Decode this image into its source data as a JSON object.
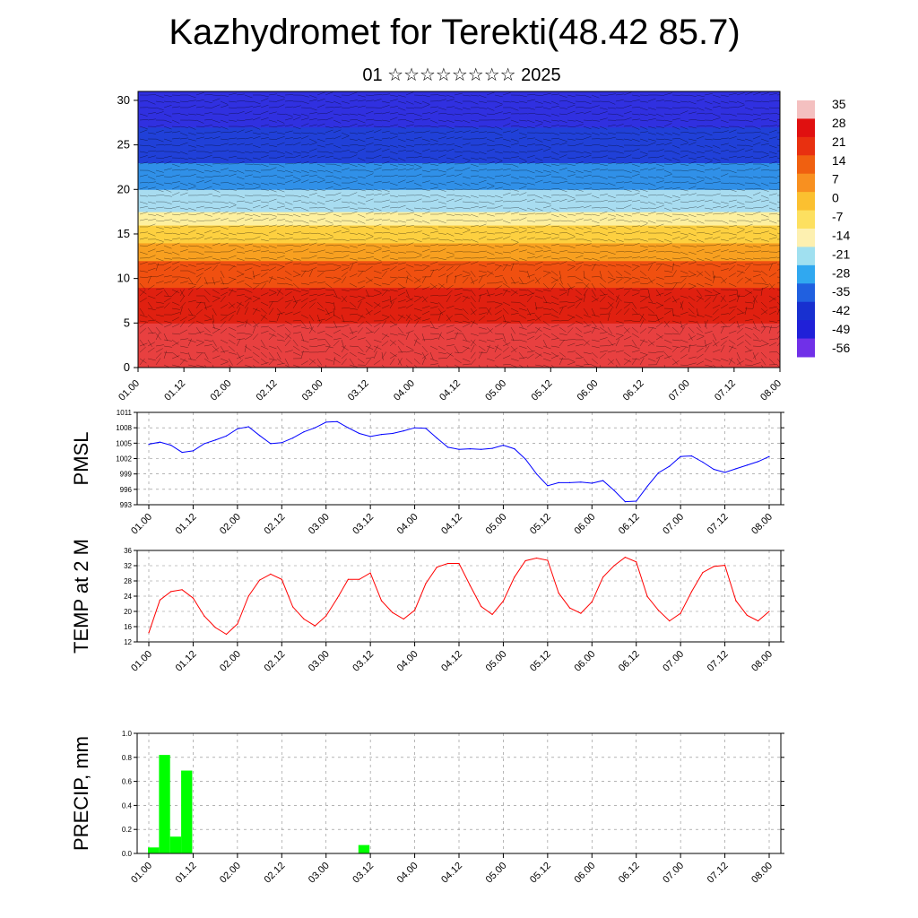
{
  "title": "Kazhydromet for Terekti(48.42 85.7)",
  "subtitle": "01 ☆☆☆☆☆☆☆☆ 2025",
  "time_ticks": [
    "01.00",
    "01.12",
    "02.00",
    "02.12",
    "03.00",
    "03.12",
    "04.00",
    "04.12",
    "05.00",
    "05.12",
    "06.00",
    "06.12",
    "07.00",
    "07.12",
    "08.00"
  ],
  "chart_data": [
    {
      "type": "heatmap",
      "name": "vertical-cross-section",
      "description": "temperature field with wind barbs over 0-30 levels",
      "y_ticks": [
        0,
        5,
        10,
        15,
        20,
        25,
        30
      ],
      "ylim": [
        0,
        31
      ],
      "colorbar": {
        "labels": [
          "35",
          "28",
          "21",
          "14",
          "7",
          "0",
          "-7",
          "-14",
          "-21",
          "-28",
          "-35",
          "-42",
          "-49",
          "-56"
        ],
        "colors": [
          "#f4c0c0",
          "#e01010",
          "#e83010",
          "#f06010",
          "#f89020",
          "#fbc030",
          "#fde060",
          "#fdf0b0",
          "#a0e0f0",
          "#30a8f0",
          "#2060e0",
          "#1830d0",
          "#2020d8",
          "#7030e8"
        ]
      },
      "bands": [
        {
          "level": 0,
          "color": "#e84040"
        },
        {
          "level": 5,
          "color": "#e02010"
        },
        {
          "level": 9,
          "color": "#f05010"
        },
        {
          "level": 12,
          "color": "#f8a020"
        },
        {
          "level": 14,
          "color": "#fdd040"
        },
        {
          "level": 16,
          "color": "#fdf0a0"
        },
        {
          "level": 17.5,
          "color": "#a8dcf0"
        },
        {
          "level": 20,
          "color": "#3090e8"
        },
        {
          "level": 23,
          "color": "#2040d8"
        },
        {
          "level": 27,
          "color": "#3030e0"
        },
        {
          "level": 31,
          "color": "#7040e8"
        }
      ]
    },
    {
      "type": "line",
      "name": "pmsl",
      "ylabel": "PMSL",
      "ylim": [
        993,
        1011
      ],
      "y_ticks": [
        993,
        996,
        999,
        1002,
        1005,
        1008,
        1011
      ],
      "color": "#0000ff",
      "x": [
        0,
        3,
        6,
        9,
        12,
        15,
        18,
        21,
        24,
        27,
        30,
        33,
        36,
        39,
        42,
        45,
        48,
        51,
        54,
        57,
        60,
        63,
        66,
        69,
        72,
        75,
        78,
        81,
        84,
        87,
        90,
        93,
        96,
        99,
        102,
        105,
        108,
        111,
        114,
        117,
        120,
        123,
        126,
        129,
        132,
        135,
        138,
        141,
        144,
        147,
        150,
        153,
        156,
        159,
        162,
        165,
        168
      ],
      "values": [
        1004.8,
        1005.2,
        1004.6,
        1003.2,
        1003.5,
        1004.9,
        1005.6,
        1006.4,
        1007.8,
        1008.2,
        1006.5,
        1004.9,
        1005.1,
        1006.0,
        1007.2,
        1008.0,
        1009.1,
        1009.2,
        1008.0,
        1006.9,
        1006.3,
        1006.7,
        1006.9,
        1007.4,
        1008.0,
        1007.9,
        1006.0,
        1004.2,
        1003.8,
        1003.9,
        1003.8,
        1004.0,
        1004.6,
        1003.9,
        1001.9,
        999.0,
        996.7,
        997.3,
        997.3,
        997.4,
        997.2,
        997.7,
        995.8,
        993.6,
        993.7,
        996.6,
        999.2,
        1000.5,
        1002.4,
        1002.5,
        1001.3,
        999.9,
        999.3,
        1000.0,
        1000.7,
        1001.4,
        1002.4
      ]
    },
    {
      "type": "line",
      "name": "temp-2m",
      "ylabel": "TEMP at 2 M",
      "ylim": [
        12,
        36
      ],
      "y_ticks": [
        12,
        16,
        20,
        24,
        28,
        32,
        36
      ],
      "color": "#ff0000",
      "x": [
        0,
        3,
        6,
        9,
        12,
        15,
        18,
        21,
        24,
        27,
        30,
        33,
        36,
        39,
        42,
        45,
        48,
        51,
        54,
        57,
        60,
        63,
        66,
        69,
        72,
        75,
        78,
        81,
        84,
        87,
        90,
        93,
        96,
        99,
        102,
        105,
        108,
        111,
        114,
        117,
        120,
        123,
        126,
        129,
        132,
        135,
        138,
        141,
        144,
        147,
        150,
        153,
        156,
        159,
        162,
        165,
        168
      ],
      "values": [
        14.4,
        23.0,
        25.2,
        25.7,
        23.5,
        18.8,
        15.8,
        14.0,
        16.7,
        24.0,
        28.2,
        29.8,
        28.4,
        21.2,
        18.0,
        16.2,
        18.8,
        23.4,
        28.4,
        28.4,
        30.1,
        22.8,
        19.7,
        18.0,
        20.3,
        27.3,
        31.6,
        32.6,
        32.6,
        26.8,
        21.3,
        19.2,
        22.7,
        29.0,
        33.3,
        34.0,
        33.4,
        24.8,
        20.9,
        19.5,
        22.5,
        29.0,
        32.0,
        34.2,
        33.0,
        23.9,
        20.3,
        17.5,
        19.5,
        25.2,
        30.2,
        31.8,
        32.1,
        22.8,
        19.0,
        17.5,
        20.0
      ]
    },
    {
      "type": "bar",
      "name": "precip",
      "ylabel": "PRECIP, mm",
      "ylim": [
        0,
        1.0
      ],
      "y_ticks": [
        "0.0",
        "0.2",
        "0.4",
        "0.6",
        "0.8",
        "1.0"
      ],
      "color": "#00ff00",
      "bar_width_hours": 3,
      "x": [
        0,
        3,
        6,
        9,
        57
      ],
      "values": [
        0.05,
        0.82,
        0.14,
        0.69,
        0.07
      ]
    }
  ]
}
